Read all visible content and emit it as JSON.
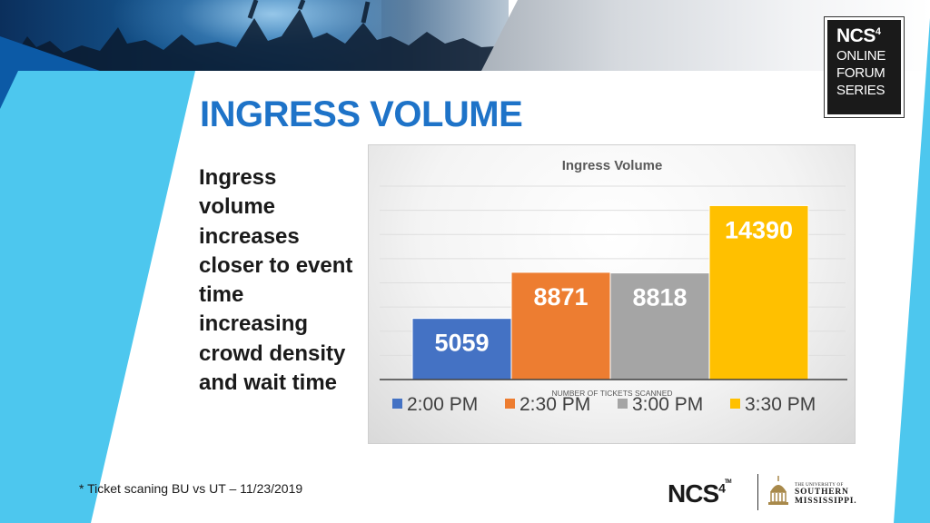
{
  "slide": {
    "title": "INGRESS VOLUME",
    "description": "Ingress volume increases closer to event time increasing crowd density and wait time",
    "footnote": "* Ticket scaning BU vs UT – 11/23/2019"
  },
  "logos": {
    "series": {
      "brand": "NCS",
      "brand_sup": "4",
      "line1": "ONLINE",
      "line2": "FORUM",
      "line3": "SERIES"
    },
    "footer_brand": "NCS",
    "footer_brand_sup": "4",
    "footer_tm": "TM",
    "university_small": "THE UNIVERSITY OF",
    "university_line1": "SOUTHERN",
    "university_line2": "MISSISSIPPI."
  },
  "colors": {
    "title_blue": "#1e73c8",
    "accent_cyan": "#4dc7ee",
    "bar_blue": "#4472c4",
    "bar_orange": "#ed7d31",
    "bar_gray": "#a5a5a5",
    "bar_yellow": "#ffc000"
  },
  "chart_data": {
    "type": "bar",
    "title": "Ingress Volume",
    "xlabel": "NUMBER OF TICKETS SCANNED",
    "ylabel": "",
    "ylim": [
      0,
      16000
    ],
    "grid": true,
    "legend": "bottom",
    "series": [
      {
        "name": "2:00 PM",
        "values": [
          5059
        ],
        "color": "#4472c4"
      },
      {
        "name": "2:30 PM",
        "values": [
          8871
        ],
        "color": "#ed7d31"
      },
      {
        "name": "3:00 PM",
        "values": [
          8818
        ],
        "color": "#a5a5a5"
      },
      {
        "name": "3:30 PM",
        "values": [
          14390
        ],
        "color": "#ffc000"
      }
    ]
  }
}
